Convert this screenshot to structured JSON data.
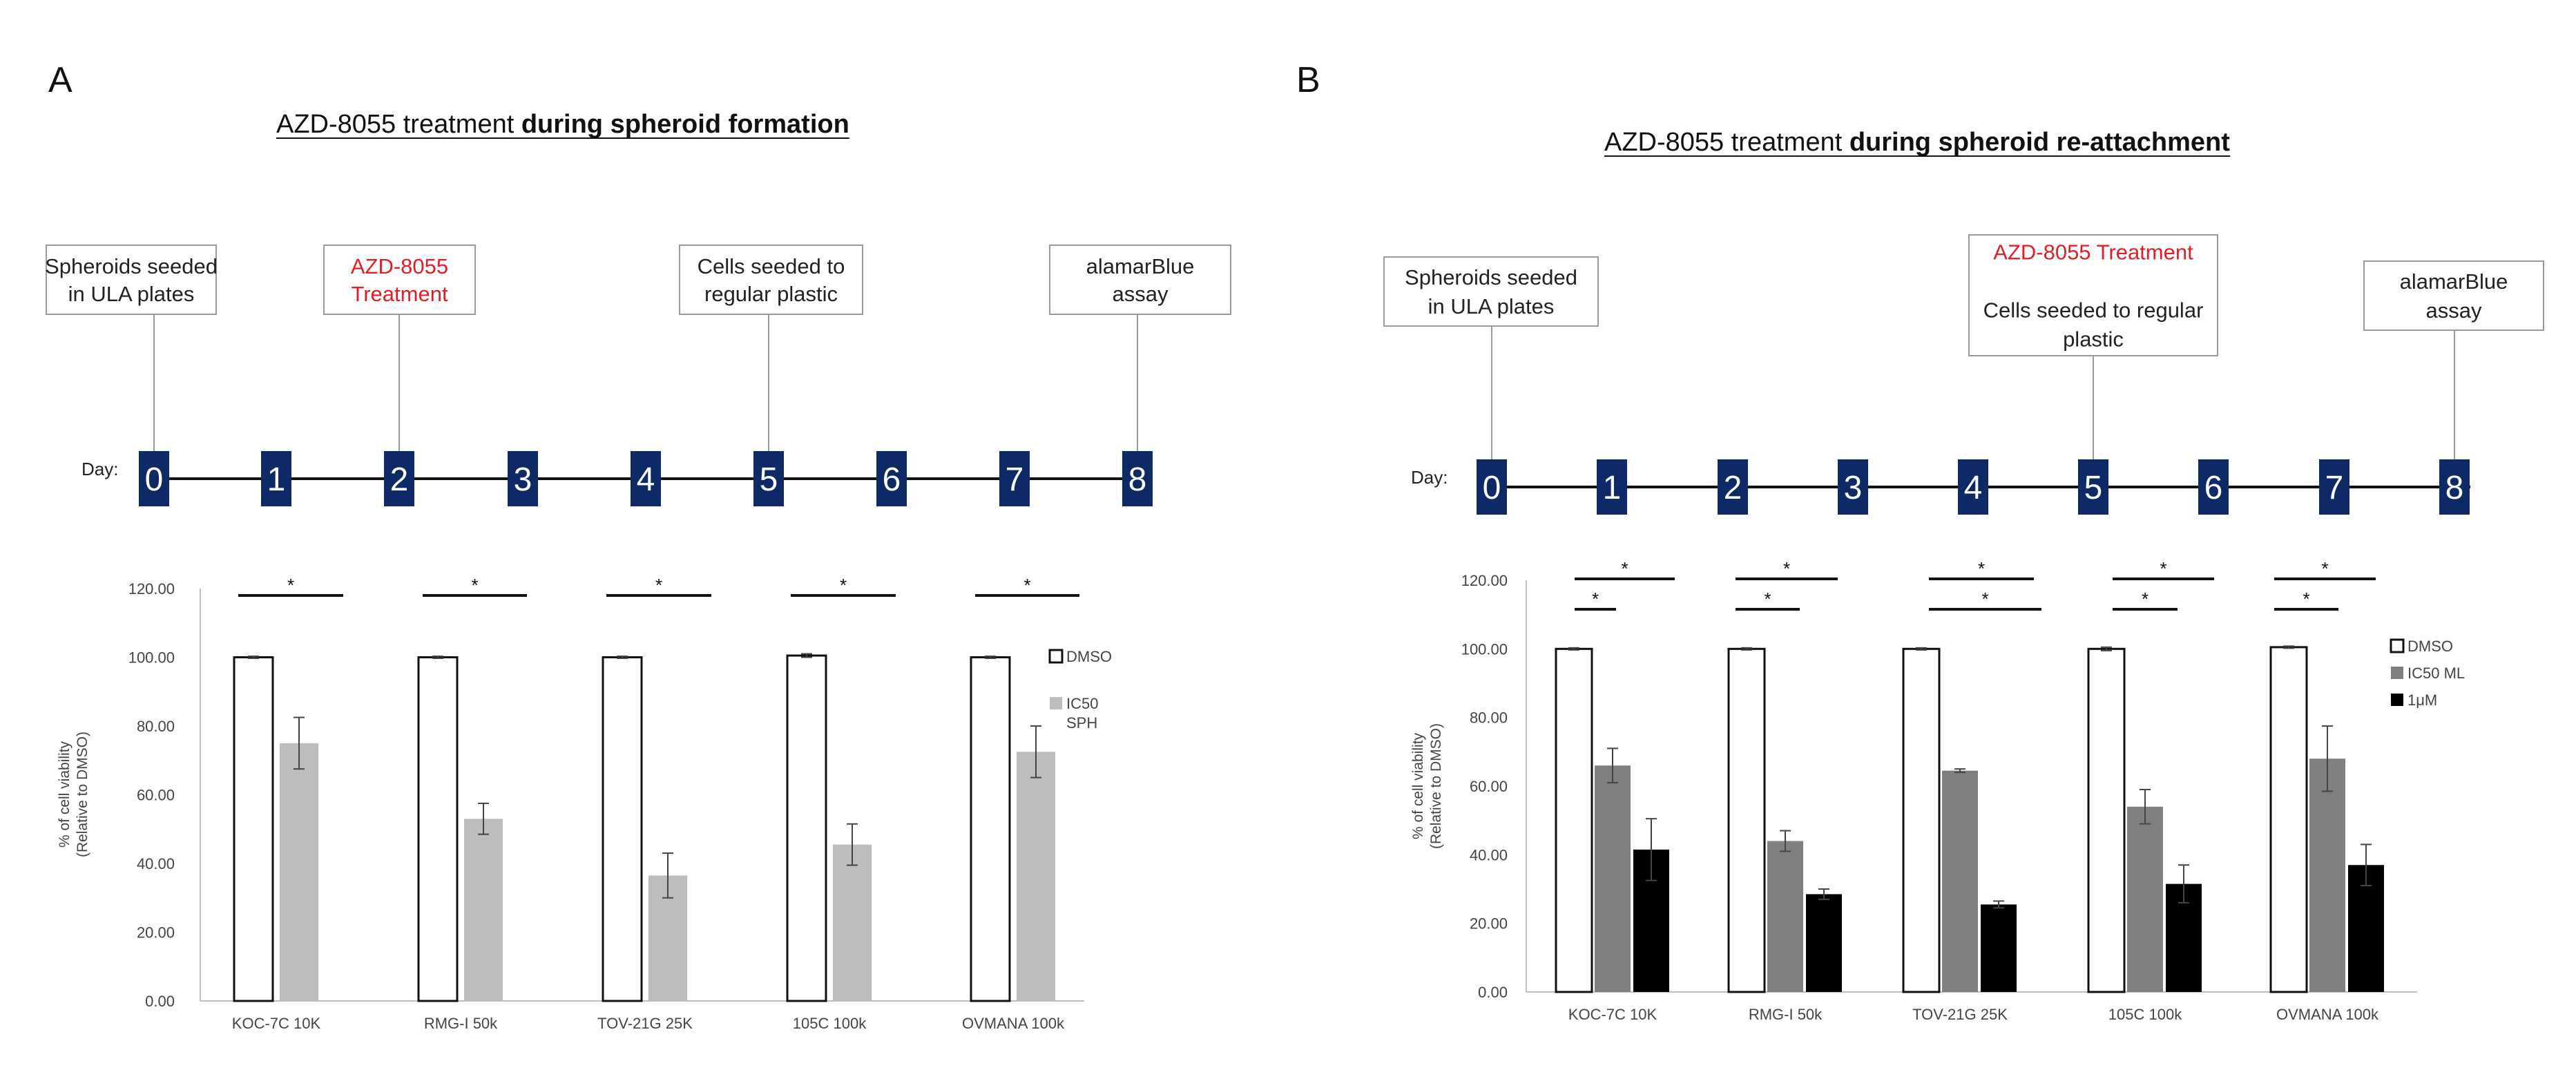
{
  "panels": [
    {
      "letter": "A",
      "title_normal": "AZD-8055 treatment ",
      "title_bold": "during spheroid formation",
      "day_prefix": "Day:",
      "days": [
        "0",
        "1",
        "2",
        "3",
        "4",
        "5",
        "6",
        "7",
        "8"
      ],
      "timeline_boxes": [
        {
          "day": 0,
          "lines": [
            {
              "text": "Spheroids seeded",
              "red": false
            },
            {
              "text": "in ULA plates",
              "red": false
            }
          ]
        },
        {
          "day": 2,
          "lines": [
            {
              "text": "AZD-8055",
              "red": true
            },
            {
              "text": "Treatment",
              "red": true
            }
          ]
        },
        {
          "day": 5,
          "lines": [
            {
              "text": "Cells seeded to",
              "red": false
            },
            {
              "text": "regular plastic",
              "red": false
            }
          ]
        },
        {
          "day": 8,
          "lines": [
            {
              "text": "alamarBlue",
              "red": false
            },
            {
              "text": "assay",
              "red": false
            }
          ]
        }
      ]
    },
    {
      "letter": "B",
      "title_normal": "AZD-8055 treatment ",
      "title_bold": "during spheroid re-attachment",
      "day_prefix": "Day:",
      "days": [
        "0",
        "1",
        "2",
        "3",
        "4",
        "5",
        "6",
        "7",
        "8"
      ],
      "timeline_boxes": [
        {
          "day": 0,
          "lines": [
            {
              "text": "Spheroids seeded",
              "red": false
            },
            {
              "text": "in ULA plates",
              "red": false
            }
          ]
        },
        {
          "day": 5,
          "lines": [
            {
              "text": "AZD-8055 Treatment",
              "red": true
            },
            {
              "text": "",
              "red": false
            },
            {
              "text": "Cells seeded to regular",
              "red": false
            },
            {
              "text": "plastic",
              "red": false
            }
          ]
        },
        {
          "day": 8,
          "lines": [
            {
              "text": "alamarBlue",
              "red": false
            },
            {
              "text": "assay",
              "red": false
            }
          ]
        }
      ]
    }
  ],
  "chart_data": [
    {
      "type": "bar",
      "panel": "A",
      "categories": [
        "KOC-7C 10K",
        "RMG-I 50k",
        "TOV-21G 25K",
        "105C 100k",
        "OVMANA 100k"
      ],
      "series": [
        {
          "name": "DMSO",
          "values": [
            100,
            100,
            100,
            100.5,
            100
          ],
          "errors": [
            0.3,
            0.3,
            0.3,
            0.5,
            0.3
          ],
          "color": "#ffffff"
        },
        {
          "name": "IC50 SPH",
          "values": [
            75,
            53,
            36.5,
            45.5,
            72.5
          ],
          "errors": [
            7.5,
            4.5,
            6.5,
            6,
            7.5
          ],
          "color": "#bdbdbd"
        }
      ],
      "significance": [
        {
          "label": "*"
        },
        {
          "label": "*"
        },
        {
          "label": "*"
        },
        {
          "label": "*"
        },
        {
          "label": "*"
        }
      ],
      "xlabel": "",
      "ylabel_lines": [
        "% of cell viability",
        "(Relative to DMSO)"
      ],
      "ylim": [
        0,
        120
      ],
      "yticks": [
        "0.00",
        "20.00",
        "40.00",
        "60.00",
        "80.00",
        "100.00",
        "120.00"
      ],
      "legend_position": "right",
      "legend_items": [
        [
          "DMSO"
        ],
        [
          "IC50",
          "SPH"
        ]
      ]
    },
    {
      "type": "bar",
      "panel": "B",
      "categories": [
        "KOC-7C 10K",
        "RMG-I 50k",
        "TOV-21G 25K",
        "105C 100k",
        "OVMANA 100k"
      ],
      "series": [
        {
          "name": "DMSO",
          "values": [
            100,
            100,
            100,
            100,
            100.5
          ],
          "errors": [
            0.3,
            0.3,
            0.3,
            0.5,
            0.3
          ],
          "color": "#ffffff"
        },
        {
          "name": "IC50 ML",
          "values": [
            66,
            44,
            64.5,
            54,
            68
          ],
          "errors": [
            5,
            3,
            0.5,
            5,
            9.5
          ],
          "color": "#7f7f7f"
        },
        {
          "name": "1μM",
          "values": [
            41.5,
            28.5,
            25.5,
            31.5,
            37
          ],
          "errors": [
            9,
            1.5,
            1,
            5.5,
            6
          ],
          "color": "#000000"
        }
      ],
      "significance": [
        {
          "label": "*"
        },
        {
          "label": "*"
        },
        {
          "label": "*"
        },
        {
          "label": "*"
        },
        {
          "label": "*"
        },
        {
          "label": "*"
        },
        {
          "label": "*"
        },
        {
          "label": "*"
        },
        {
          "label": "*"
        },
        {
          "label": "*"
        }
      ],
      "xlabel": "",
      "ylabel_lines": [
        "% of cell viability",
        "(Relative to DMSO)"
      ],
      "ylim": [
        0,
        120
      ],
      "yticks": [
        "0.00",
        "20.00",
        "40.00",
        "60.00",
        "80.00",
        "100.00",
        "120.00"
      ],
      "legend_position": "right",
      "legend_items": [
        [
          "DMSO"
        ],
        [
          "IC50 ML"
        ],
        [
          "1μM"
        ]
      ]
    }
  ],
  "colors": {
    "timeline_box": "#0d2a66",
    "accent_red": "#e41d25",
    "axis": "#bfbfbf"
  }
}
